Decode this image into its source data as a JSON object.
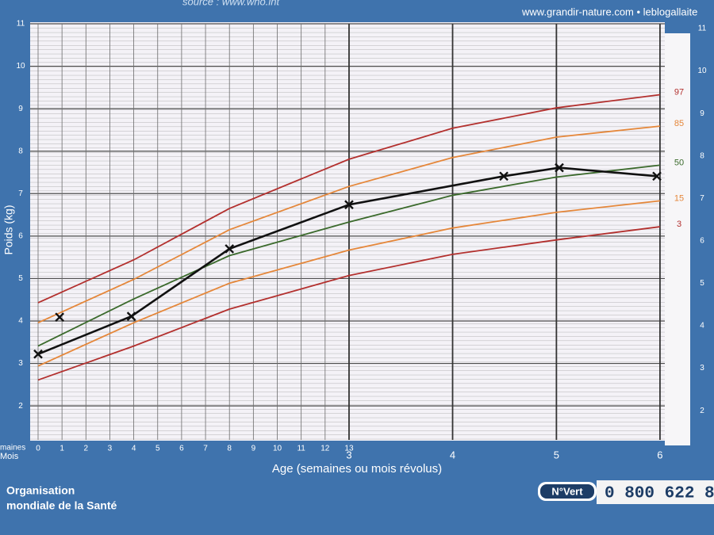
{
  "header": {
    "source": "source : www.who.int",
    "website": "www.grandir-nature.com • leblogallaite"
  },
  "footer": {
    "organisation_line1": "Organisation",
    "organisation_line2": "mondiale de la Santé",
    "hotline_badge": "N°Vert",
    "hotline_number": "0 800 622 8"
  },
  "chart_data": {
    "type": "line",
    "xlabel": "Age (semaines ou mois révolus)",
    "ylabel": "Poids (kg)",
    "week_label": "maines",
    "month_label": "Mois",
    "xlim": [
      0,
      26.5
    ],
    "ylim": [
      1.2,
      11
    ],
    "xticks": [
      0,
      1,
      2,
      3,
      4,
      5,
      6,
      7,
      8,
      9,
      10,
      11,
      12,
      13
    ],
    "x2ticks": [
      {
        "value": 13,
        "label": "3"
      },
      {
        "value": 17.33,
        "label": "4"
      },
      {
        "value": 21.67,
        "label": "5"
      },
      {
        "value": 26,
        "label": "6"
      }
    ],
    "yticks": [
      2,
      3,
      4,
      5,
      6,
      7,
      8,
      9,
      10,
      11
    ],
    "grid": true,
    "series": [
      {
        "name": "97",
        "color": "#b3302e",
        "x": [
          0,
          4,
          8,
          13,
          17.33,
          21.67,
          26
        ],
        "values": [
          4.43,
          5.44,
          6.65,
          7.81,
          8.54,
          9.02,
          9.33
        ],
        "markers": false
      },
      {
        "name": "85",
        "color": "#e5873a",
        "x": [
          0,
          4,
          8,
          13,
          17.33,
          21.67,
          26
        ],
        "values": [
          3.96,
          4.98,
          6.15,
          7.17,
          7.85,
          8.33,
          8.59
        ],
        "markers": false
      },
      {
        "name": "50",
        "color": "#3b6a2c",
        "x": [
          0,
          4,
          8,
          13,
          17.33,
          21.67,
          26
        ],
        "values": [
          3.41,
          4.52,
          5.54,
          6.33,
          6.96,
          7.39,
          7.67
        ],
        "markers": false
      },
      {
        "name": "15",
        "color": "#e5873a",
        "x": [
          0,
          4,
          8,
          13,
          17.33,
          21.67,
          26
        ],
        "values": [
          2.94,
          3.96,
          4.89,
          5.67,
          6.19,
          6.56,
          6.83
        ],
        "markers": false
      },
      {
        "name": "3",
        "color": "#b3302e",
        "x": [
          0,
          4,
          8,
          13,
          17.33,
          21.67,
          26
        ],
        "values": [
          2.61,
          3.41,
          4.28,
          5.07,
          5.57,
          5.91,
          6.22
        ],
        "markers": false
      },
      {
        "color": "#111111",
        "x": [
          0,
          3.9,
          8,
          13,
          19.47,
          21.79,
          25.87
        ],
        "values": [
          3.22,
          4.11,
          5.7,
          6.74,
          7.41,
          7.61,
          7.41
        ],
        "markers": true
      },
      {
        "color": "#111111",
        "x": [
          0.9
        ],
        "values": [
          4.09
        ],
        "markers": true,
        "line": false
      }
    ]
  }
}
